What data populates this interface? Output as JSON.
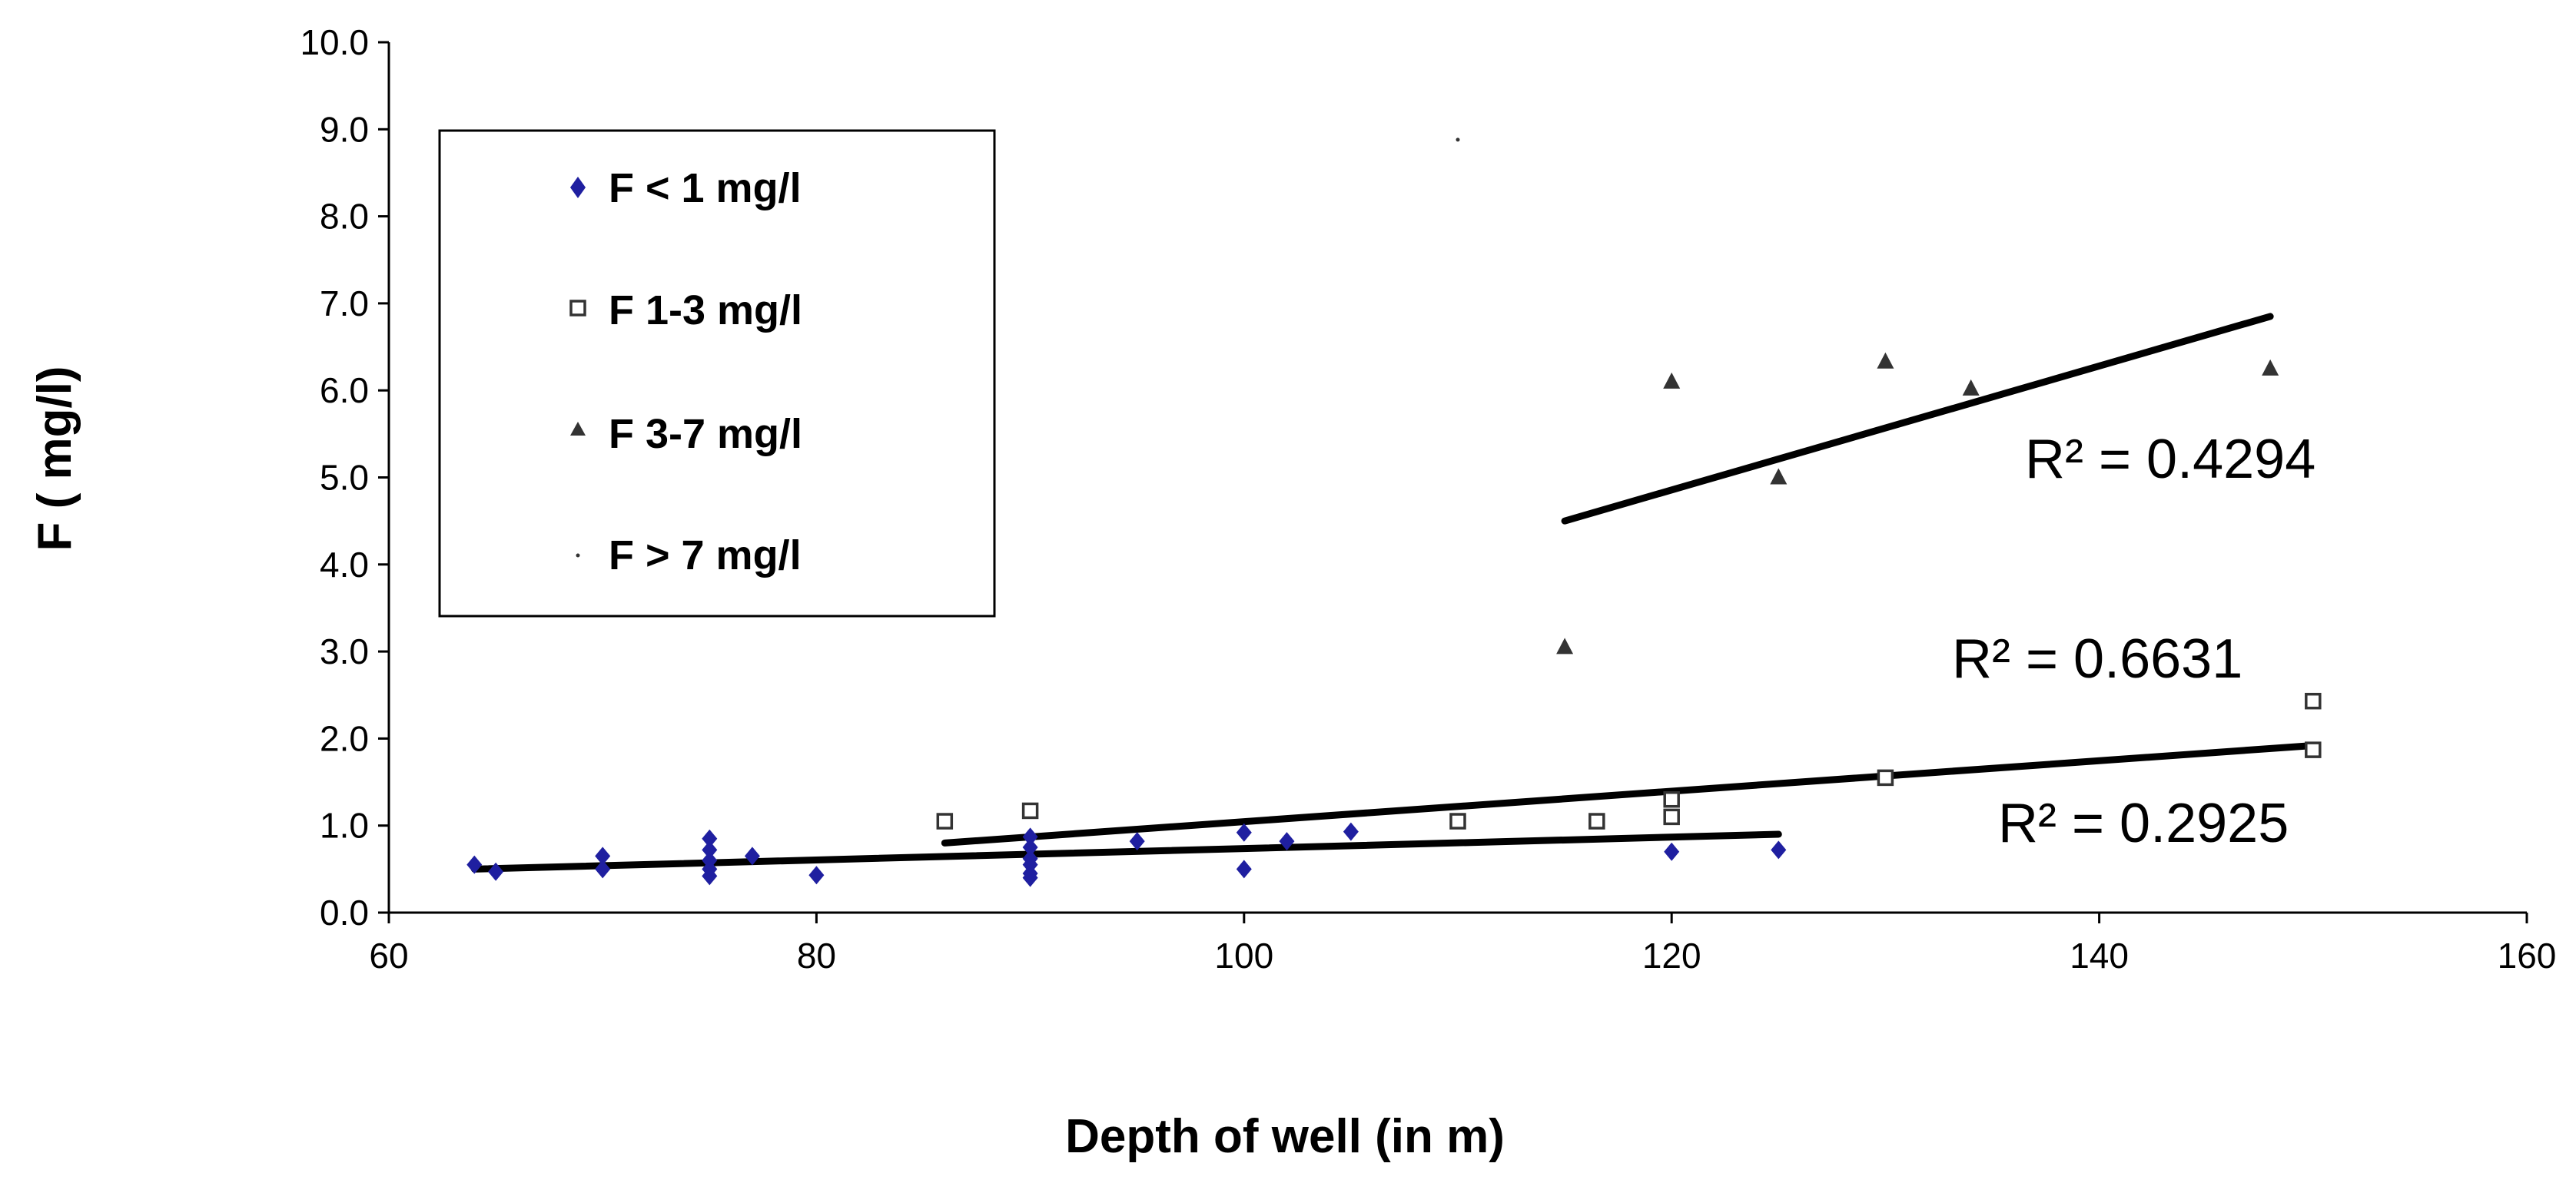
{
  "chart_data": {
    "type": "scatter",
    "title": "",
    "xlabel": "Depth of well (in m)",
    "ylabel": "F ( mg/l)",
    "xlim": [
      60,
      160
    ],
    "ylim": [
      0,
      10
    ],
    "x_ticks": [
      "60",
      "80",
      "100",
      "120",
      "140",
      "160"
    ],
    "y_ticks": [
      "0.0",
      "1.0",
      "2.0",
      "3.0",
      "4.0",
      "5.0",
      "6.0",
      "7.0",
      "8.0",
      "9.0",
      "10.0"
    ],
    "grid": false,
    "legend_position": "top-left",
    "colors": {
      "blue": "#1f1fa0",
      "dark": "#333333",
      "line": "#000000"
    },
    "series": [
      {
        "name": "F < 1 mg/l",
        "marker": "diamond",
        "color": "#1f1fa0",
        "points": [
          [
            64,
            0.55
          ],
          [
            65,
            0.47
          ],
          [
            70,
            0.5
          ],
          [
            70,
            0.65
          ],
          [
            75,
            0.85
          ],
          [
            75,
            0.72
          ],
          [
            75,
            0.6
          ],
          [
            75,
            0.5
          ],
          [
            75,
            0.42
          ],
          [
            77,
            0.65
          ],
          [
            80,
            0.43
          ],
          [
            90,
            0.87
          ],
          [
            90,
            0.75
          ],
          [
            90,
            0.62
          ],
          [
            90,
            0.55
          ],
          [
            90,
            0.45
          ],
          [
            90,
            0.4
          ],
          [
            95,
            0.82
          ],
          [
            100,
            0.92
          ],
          [
            100,
            0.5
          ],
          [
            102,
            0.82
          ],
          [
            105,
            0.93
          ],
          [
            120,
            0.7
          ],
          [
            125,
            0.72
          ]
        ],
        "trendline": {
          "x": [
            64,
            125
          ],
          "y": [
            0.5,
            0.9
          ]
        },
        "r2_label": "R² = 0.2925"
      },
      {
        "name": "F 1-3 mg/l",
        "marker": "square",
        "color": "#333333",
        "points": [
          [
            86,
            1.05
          ],
          [
            90,
            1.17
          ],
          [
            110,
            1.05
          ],
          [
            116.5,
            1.05
          ],
          [
            120,
            1.1
          ],
          [
            120,
            1.3
          ],
          [
            130,
            1.55
          ],
          [
            150,
            2.43
          ],
          [
            150,
            1.87
          ]
        ],
        "trendline": {
          "x": [
            86,
            150
          ],
          "y": [
            0.8,
            1.92
          ]
        },
        "r2_label": "R² = 0.6631"
      },
      {
        "name": "F 3-7 mg/l",
        "marker": "triangle",
        "color": "#333333",
        "points": [
          [
            115,
            3.05
          ],
          [
            120,
            6.1
          ],
          [
            125,
            5.0
          ],
          [
            130,
            6.33
          ],
          [
            134,
            6.02
          ],
          [
            148,
            6.25
          ]
        ],
        "trendline": {
          "x": [
            115,
            148
          ],
          "y": [
            4.5,
            6.85
          ]
        },
        "r2_label": "R² = 0.4294"
      },
      {
        "name": "F > 7 mg/l",
        "marker": "dot",
        "color": "#333333",
        "points": [
          [
            110,
            8.88
          ]
        ]
      }
    ]
  }
}
